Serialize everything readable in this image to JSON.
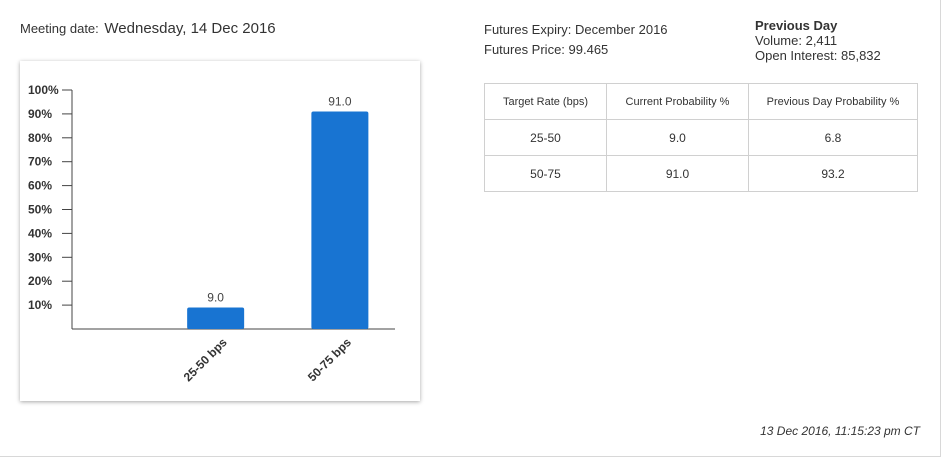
{
  "meeting": {
    "label": "Meeting date:",
    "date": "Wednesday, 14 Dec 2016"
  },
  "futures": {
    "expiry": "Futures Expiry: December 2016",
    "price": "Futures Price: 99.465"
  },
  "previous_day": {
    "title": "Previous Day",
    "volume": "Volume: 2,411",
    "open_interest": "Open Interest: 85,832"
  },
  "table": {
    "headers": [
      "Target Rate (bps)",
      "Current Probability %",
      "Previous Day Probability %"
    ],
    "rows": [
      [
        "25-50",
        "9.0",
        "6.8"
      ],
      [
        "50-75",
        "91.0",
        "93.2"
      ]
    ]
  },
  "timestamp": "13 Dec 2016, 11:15:23 pm CT",
  "chart_data": {
    "type": "bar",
    "categories": [
      "25-50 bps",
      "50-75 bps"
    ],
    "values": [
      9.0,
      91.0
    ],
    "value_labels": [
      "9.0",
      "91.0"
    ],
    "ylim": [
      0,
      100
    ],
    "yticks": [
      "10%",
      "20%",
      "30%",
      "40%",
      "50%",
      "60%",
      "70%",
      "80%",
      "90%",
      "100%"
    ],
    "bar_color": "#1874d2",
    "grid": false
  }
}
